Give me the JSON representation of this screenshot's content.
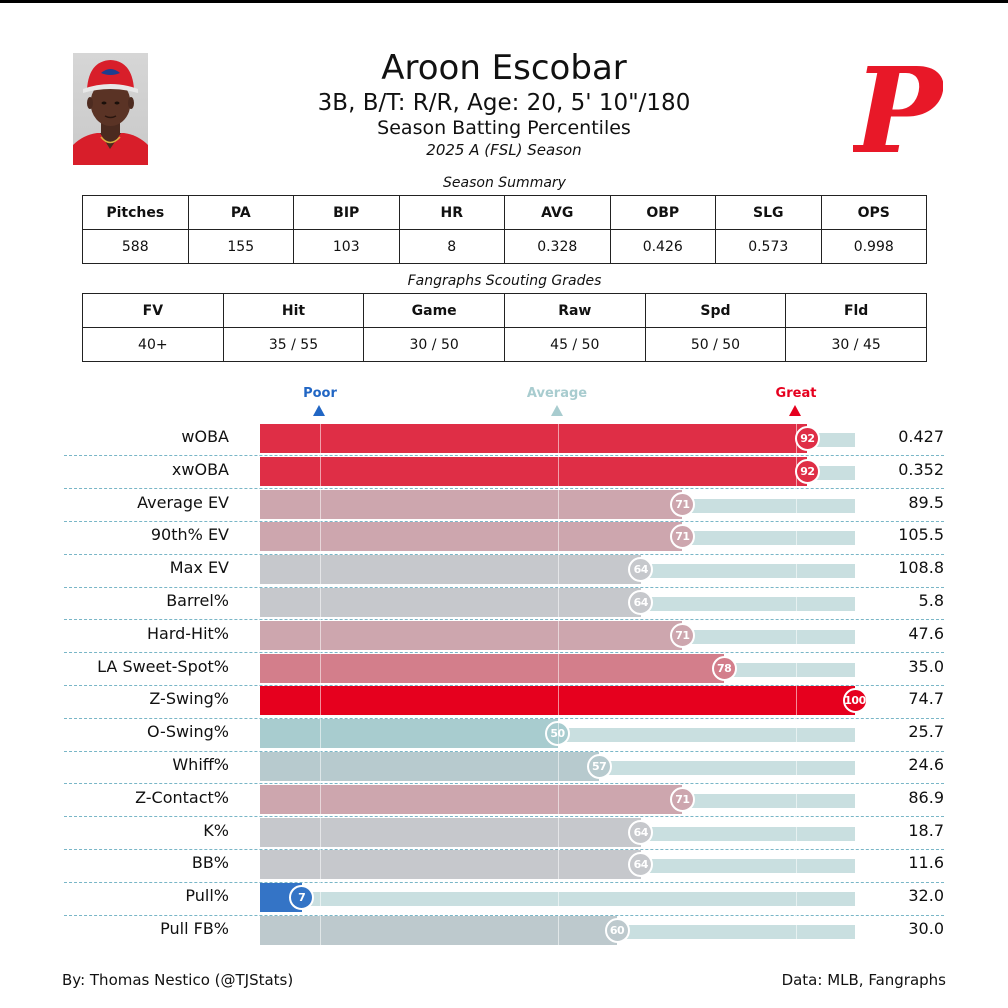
{
  "header": {
    "name": "Aroon Escobar",
    "subtitle": "3B, B/T: R/R, Age: 20, 5' 10\"/180",
    "subtitle2": "Season Batting Percentiles",
    "season": "2025 A (FSL) Season",
    "logo_letter": "P"
  },
  "summary": {
    "title": "Season Summary",
    "headers": [
      "Pitches",
      "PA",
      "BIP",
      "HR",
      "AVG",
      "OBP",
      "SLG",
      "OPS"
    ],
    "values": [
      "588",
      "155",
      "103",
      "8",
      "0.328",
      "0.426",
      "0.573",
      "0.998"
    ]
  },
  "scouting": {
    "title": "Fangraphs Scouting Grades",
    "headers": [
      "FV",
      "Hit",
      "Game",
      "Raw",
      "Spd",
      "Fld"
    ],
    "values": [
      "40+",
      "35 / 55",
      "30 / 50",
      "45 / 50",
      "50 / 50",
      "30 / 45"
    ]
  },
  "legend": {
    "poor": "Poor",
    "average": "Average",
    "great": "Great"
  },
  "colors": {
    "poor": "#2166c4",
    "average": "#a8cccf",
    "great": "#e6001e"
  },
  "chart_data": {
    "type": "bar",
    "orientation": "horizontal",
    "xlim": [
      0,
      100
    ],
    "categories": [
      "wOBA",
      "xwOBA",
      "Average EV",
      "90th% EV",
      "Max EV",
      "Barrel%",
      "Hard-Hit%",
      "LA Sweet-Spot%",
      "Z-Swing%",
      "O-Swing%",
      "Whiff%",
      "Z-Contact%",
      "K%",
      "BB%",
      "Pull%",
      "Pull FB%"
    ],
    "percentiles": [
      92,
      92,
      71,
      71,
      64,
      64,
      71,
      78,
      100,
      50,
      57,
      71,
      64,
      64,
      7,
      60
    ],
    "stat_values": [
      "0.427",
      "0.352",
      "89.5",
      "105.5",
      "108.8",
      "5.8",
      "47.6",
      "35.0",
      "74.7",
      "25.7",
      "24.6",
      "86.9",
      "18.7",
      "11.6",
      "32.0",
      "30.0"
    ]
  },
  "footer": {
    "left": "By: Thomas Nestico (@TJStats)",
    "right": "Data: MLB, Fangraphs"
  }
}
